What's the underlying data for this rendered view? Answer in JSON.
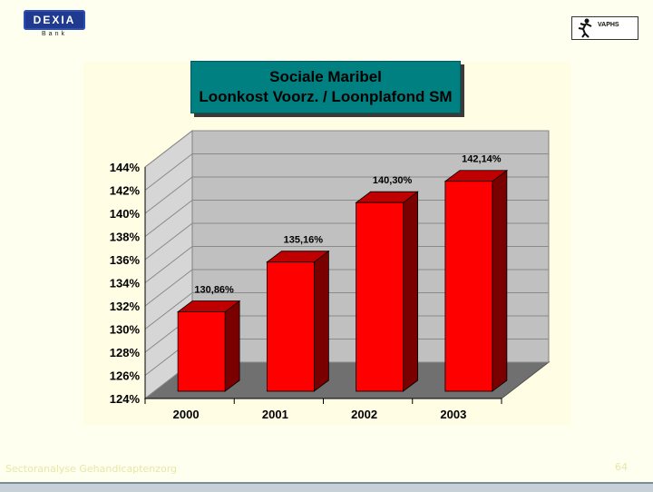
{
  "logos": {
    "dexia_name": "DEXIA",
    "dexia_sub": "Bank",
    "vaphs_name": "VAPHS"
  },
  "title": {
    "line1": "Sociale Maribel",
    "line2": "Loonkost Voorz. / Loonplafond SM"
  },
  "footer": {
    "left_text": "Sectoranalyse Gehandicaptenzorg",
    "page_number": "64"
  },
  "colors": {
    "bar_front": "#ff0000",
    "bar_side": "#7a0000",
    "bar_top": "#c00000",
    "wall": "#c0c0c0",
    "floor": "#707070",
    "title_bg": "#008080"
  },
  "chart_data": {
    "type": "bar",
    "title": "Sociale Maribel Loonkost Voorz. / Loonplafond SM",
    "categories": [
      "2000",
      "2001",
      "2002",
      "2003"
    ],
    "values": [
      130.86,
      135.16,
      140.3,
      142.14
    ],
    "value_labels": [
      "130,86%",
      "135,16%",
      "140,30%",
      "142,14%"
    ],
    "ylim": [
      124,
      144
    ],
    "yticks": [
      124,
      126,
      128,
      130,
      132,
      134,
      136,
      138,
      140,
      142,
      144
    ],
    "ytick_labels": [
      "124%",
      "126%",
      "128%",
      "130%",
      "132%",
      "134%",
      "136%",
      "138%",
      "140%",
      "142%",
      "144%"
    ],
    "xlabel": "",
    "ylabel": "",
    "grid": true,
    "legend": "none",
    "style": "3d"
  }
}
